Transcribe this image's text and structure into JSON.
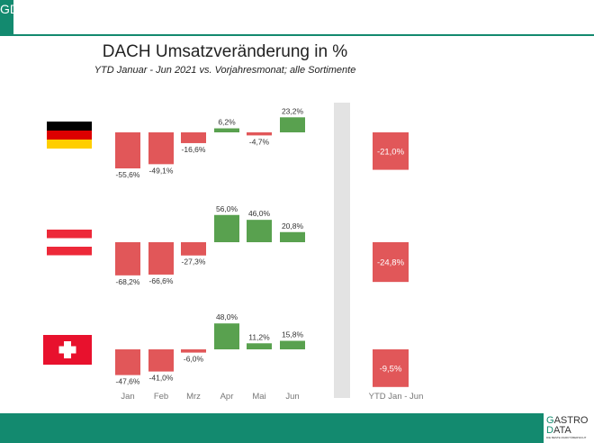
{
  "header": {
    "logo": "GD",
    "title": "DACH Umsatzveränderung in %",
    "subtitle": "YTD Januar - Jun 2021 vs. Vorjahresmonat; alle Sortimente"
  },
  "footer": {
    "logo_line1": "GASTRO",
    "logo_line2": "DATA",
    "logo_tagline": "DIE BESTE MARKTÜBERSICHT"
  },
  "colors": {
    "negative": "#e15759",
    "positive": "#59a14f",
    "brand": "#138a6f",
    "separator": "#e3e3e3"
  },
  "chart_data": {
    "type": "bar",
    "categories": [
      "Jan",
      "Feb",
      "Mrz",
      "Apr",
      "Mai",
      "Jun"
    ],
    "ytd_label": "YTD Jan - Jun",
    "series": [
      {
        "name": "Deutschland",
        "flag": "de",
        "values": [
          -55.6,
          -49.1,
          -16.6,
          6.2,
          -4.7,
          23.2
        ],
        "labels": [
          "-55,6%",
          "-49,1%",
          "-16,6%",
          "6,2%",
          "-4,7%",
          "23,2%"
        ],
        "ytd": -21.0,
        "ytd_label": "-21,0%"
      },
      {
        "name": "Österreich",
        "flag": "at",
        "values": [
          -68.2,
          -66.6,
          -27.3,
          56.0,
          46.0,
          20.8
        ],
        "labels": [
          "-68,2%",
          "-66,6%",
          "-27,3%",
          "56,0%",
          "46,0%",
          "20,8%"
        ],
        "ytd": -24.8,
        "ytd_label": "-24,8%"
      },
      {
        "name": "Schweiz",
        "flag": "ch",
        "values": [
          -47.6,
          -41.0,
          -6.0,
          48.0,
          11.2,
          15.8
        ],
        "labels": [
          "-47,6%",
          "-41,0%",
          "-6,0%",
          "48,0%",
          "11,2%",
          "15,8%"
        ],
        "ytd": -9.5,
        "ytd_label": "-9,5%"
      }
    ]
  }
}
